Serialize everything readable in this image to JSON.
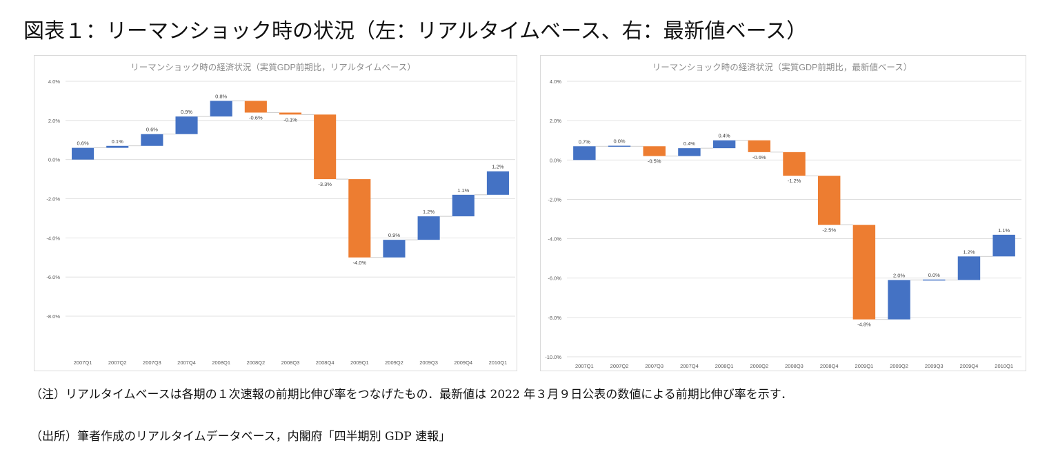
{
  "figure_title": "図表１：リーマンショック時の状況（左：リアルタイムベース、右：最新値ベース）",
  "colors": {
    "increase": "#4472c4",
    "decrease": "#ed7d31",
    "grid": "#d9d9d9",
    "axis_text": "#595959",
    "title_text": "#8c8c8c"
  },
  "chart_data": [
    {
      "type": "waterfall",
      "title": "リーマンショック時の経済状況（実質GDP前期比，リアルタイムベース）",
      "categories": [
        "2007Q1",
        "2007Q2",
        "2007Q3",
        "2007Q4",
        "2008Q1",
        "2008Q2",
        "2008Q3",
        "2008Q4",
        "2009Q1",
        "2009Q2",
        "2009Q3",
        "2009Q4",
        "2010Q1"
      ],
      "values": [
        0.6,
        0.1,
        0.6,
        0.9,
        0.8,
        -0.6,
        -0.1,
        -3.3,
        -4.0,
        0.9,
        1.2,
        1.1,
        1.2
      ],
      "data_labels": [
        "0.6%",
        "0.1%",
        "0.6%",
        "0.9%",
        "0.8%",
        "-0.6%",
        "-0.1%",
        "-3.3%",
        "-4.0%",
        "0.9%",
        "1.2%",
        "1.1%",
        "1.2%"
      ],
      "y_ticks": [
        4,
        2,
        0,
        -2,
        -4,
        -6,
        -8
      ],
      "y_tick_labels": [
        "4.0%",
        "2.0%",
        "0.0%",
        "-2.0%",
        "-4.0%",
        "-6.0%",
        "-8.0%"
      ],
      "ylim": [
        -9.9,
        4.0
      ],
      "xlabel": "",
      "ylabel": ""
    },
    {
      "type": "waterfall",
      "title": "リーマンショック時の経済状況（実質GDP前期比，最新値ベース）",
      "categories": [
        "2007Q1",
        "2007Q2",
        "2007Q3",
        "2007Q4",
        "2008Q1",
        "2008Q2",
        "2008Q3",
        "2008Q4",
        "2009Q1",
        "2009Q2",
        "2009Q3",
        "2009Q4",
        "2010Q1"
      ],
      "values": [
        0.7,
        0.0,
        -0.5,
        0.4,
        0.4,
        -0.6,
        -1.2,
        -2.5,
        -4.8,
        2.0,
        0.0,
        1.2,
        1.1
      ],
      "data_labels": [
        "0.7%",
        "0.0%",
        "-0.5%",
        "0.4%",
        "0.4%",
        "-0.6%",
        "-1.2%",
        "-2.5%",
        "-4.8%",
        "2.0%",
        "0.0%",
        "1.2%",
        "1.1%"
      ],
      "y_ticks": [
        4,
        2,
        0,
        -2,
        -4,
        -6,
        -8,
        -10
      ],
      "y_tick_labels": [
        "4.0%",
        "2.0%",
        "0.0%",
        "-2.0%",
        "-4.0%",
        "-6.0%",
        "-8.0%",
        "-10.0%"
      ],
      "ylim": [
        -10.0,
        4.0
      ],
      "xlabel": "",
      "ylabel": ""
    }
  ],
  "notes": {
    "note": "（注）リアルタイムベースは各期の１次速報の前期比伸び率をつなげたもの．最新値は 2022 年３月９日公表の数値による前期比伸び率を示す．",
    "source": "（出所）筆者作成のリアルタイムデータベース，内閣府「四半期別 GDP 速報」"
  }
}
